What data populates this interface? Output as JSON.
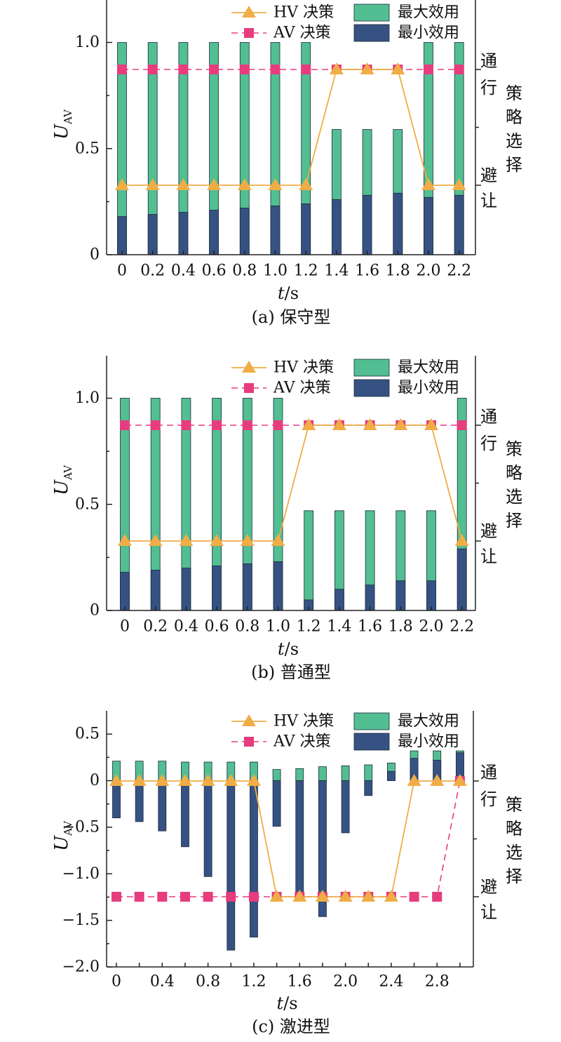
{
  "colors": {
    "max_bar": "#52be92",
    "min_bar": "#355282",
    "hv": "#f0ad45",
    "av": "#e73c7e"
  },
  "chart_data": [
    {
      "type": "bar",
      "caption": "(a) 保守型",
      "xlabel_italic": "t",
      "xlabel_unit": "/s",
      "ylabel_main": "U",
      "ylabel_sub": "AV",
      "ylim": [
        0,
        1.2
      ],
      "yticks": [
        0,
        0.5,
        1.0
      ],
      "ytick_labels": [
        "0",
        "0.5",
        "1.0"
      ],
      "x": [
        0,
        0.2,
        0.4,
        0.6,
        0.8,
        1.0,
        1.2,
        1.4,
        1.6,
        1.8,
        2.0,
        2.2
      ],
      "x_labels": [
        "0",
        "0.2",
        "0.4",
        "0.6",
        "0.8",
        "1.0",
        "1.2",
        "1.4",
        "1.6",
        "1.8",
        "2.0",
        "2.2"
      ],
      "legend": [
        "HV 决策",
        "AV 决策",
        "最大效用",
        "最小效用"
      ],
      "right_axis": {
        "pass_label": "通行",
        "yield_label": "避让",
        "title_chars": [
          "策",
          "略",
          "选",
          "择"
        ]
      },
      "series": [
        {
          "name": "最大效用",
          "values": [
            1.0,
            1.0,
            1.0,
            1.0,
            1.0,
            1.0,
            1.0,
            0.59,
            0.59,
            0.59,
            1.0,
            1.0
          ]
        },
        {
          "name": "最小效用",
          "values": [
            0.18,
            0.19,
            0.2,
            0.21,
            0.22,
            0.23,
            0.24,
            0.26,
            0.28,
            0.29,
            0.27,
            0.28
          ]
        },
        {
          "name": "HV 决策",
          "values": [
            "避让",
            "避让",
            "避让",
            "避让",
            "避让",
            "避让",
            "避让",
            "通行",
            "通行",
            "通行",
            "避让",
            "避让"
          ]
        },
        {
          "name": "AV 决策",
          "values": [
            "通行",
            "通行",
            "通行",
            "通行",
            "通行",
            "通行",
            "通行",
            "通行",
            "通行",
            "通行",
            "通行",
            "通行"
          ]
        }
      ]
    },
    {
      "type": "bar",
      "caption": "(b) 普通型",
      "xlabel_italic": "t",
      "xlabel_unit": "/s",
      "ylabel_main": "U",
      "ylabel_sub": "AV",
      "ylim": [
        0,
        1.2
      ],
      "yticks": [
        0,
        0.5,
        1.0
      ],
      "ytick_labels": [
        "0",
        "0.5",
        "1.0"
      ],
      "x": [
        0,
        0.2,
        0.4,
        0.6,
        0.8,
        1.0,
        1.2,
        1.4,
        1.6,
        1.8,
        2.0,
        2.2
      ],
      "x_labels": [
        "0",
        "0.2",
        "0.4",
        "0.6",
        "0.8",
        "1.0",
        "1.2",
        "1.4",
        "1.6",
        "1.8",
        "2.0",
        "2.2"
      ],
      "legend": [
        "HV 决策",
        "AV 决策",
        "最大效用",
        "最小效用"
      ],
      "right_axis": {
        "pass_label": "通行",
        "yield_label": "避让",
        "title_chars": [
          "策",
          "略",
          "选",
          "择"
        ]
      },
      "series": [
        {
          "name": "最大效用",
          "values": [
            1.0,
            1.0,
            1.0,
            1.0,
            1.0,
            1.0,
            0.47,
            0.47,
            0.47,
            0.47,
            0.47,
            1.0
          ]
        },
        {
          "name": "最小效用",
          "values": [
            0.18,
            0.19,
            0.2,
            0.21,
            0.22,
            0.23,
            0.05,
            0.1,
            0.12,
            0.14,
            0.14,
            0.29
          ]
        },
        {
          "name": "HV 决策",
          "values": [
            "避让",
            "避让",
            "避让",
            "避让",
            "避让",
            "避让",
            "通行",
            "通行",
            "通行",
            "通行",
            "通行",
            "避让"
          ]
        },
        {
          "name": "AV 决策",
          "values": [
            "通行",
            "通行",
            "通行",
            "通行",
            "通行",
            "通行",
            "通行",
            "通行",
            "通行",
            "通行",
            "通行",
            "通行"
          ]
        }
      ]
    },
    {
      "type": "bar",
      "caption": "(c) 激进型",
      "xlabel_italic": "t",
      "xlabel_unit": "/s",
      "ylabel_main": "U",
      "ylabel_sub": "AV",
      "ylim": [
        -2.0,
        0.75
      ],
      "yticks": [
        -2.0,
        -1.5,
        -1.0,
        -0.5,
        0,
        0.5
      ],
      "ytick_labels": [
        "−2.0",
        "−1.5",
        "−1.0",
        "−0.5",
        "0",
        "0.5"
      ],
      "x": [
        0,
        0.2,
        0.4,
        0.6,
        0.8,
        1.0,
        1.2,
        1.4,
        1.6,
        1.8,
        2.0,
        2.2,
        2.4,
        2.6,
        2.8,
        3.0
      ],
      "x_labels": [
        "0",
        "",
        "0.4",
        "",
        "0.8",
        "",
        "1.2",
        "",
        "1.6",
        "",
        "2.0",
        "",
        "2.4",
        "",
        "2.8",
        ""
      ],
      "legend": [
        "HV 决策",
        "AV 决策",
        "最大效用",
        "最小效用"
      ],
      "right_axis": {
        "pass_label": "通行",
        "yield_label": "避让",
        "title_chars": [
          "策",
          "略",
          "选",
          "择"
        ]
      },
      "series": [
        {
          "name": "最大效用",
          "values": [
            0.21,
            0.21,
            0.21,
            0.2,
            0.2,
            0.2,
            0.2,
            0.12,
            0.13,
            0.15,
            0.16,
            0.17,
            0.19,
            0.32,
            0.32,
            0.32
          ]
        },
        {
          "name": "最小效用",
          "values": [
            -0.4,
            -0.44,
            -0.54,
            -0.71,
            -1.03,
            -1.82,
            -1.68,
            -0.49,
            -1.26,
            -1.46,
            -0.56,
            -0.16,
            0.1,
            0.24,
            0.22,
            0.3
          ]
        },
        {
          "name": "HV 决策",
          "values": [
            "通行",
            "通行",
            "通行",
            "通行",
            "通行",
            "通行",
            "通行",
            "避让",
            "避让",
            "避让",
            "避让",
            "避让",
            "避让",
            "通行",
            "通行",
            "通行"
          ]
        },
        {
          "name": "AV 决策",
          "values": [
            "避让",
            "避让",
            "避让",
            "避让",
            "避让",
            "避让",
            "避让",
            "避让",
            "避让",
            "避让",
            "避让",
            "避让",
            "避让",
            "避让",
            "避让",
            "通行"
          ]
        }
      ]
    }
  ]
}
